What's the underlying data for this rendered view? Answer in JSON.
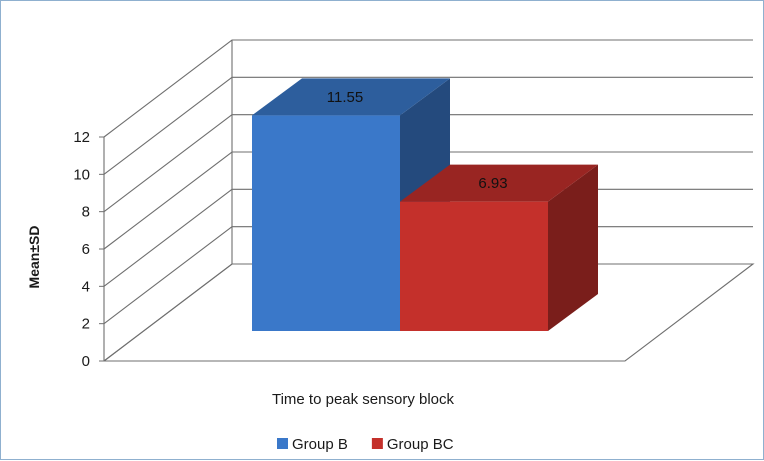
{
  "chart_data": {
    "type": "bar",
    "projection": "3d",
    "categories": [
      "Time to peak sensory block"
    ],
    "series": [
      {
        "name": "Group B",
        "values": [
          11.55
        ],
        "color": "#3a78c9"
      },
      {
        "name": "Group BC",
        "values": [
          6.93
        ],
        "color": "#c4302b"
      }
    ],
    "data_labels": [
      "11.55",
      "6.93"
    ],
    "xlabel": "Time to peak sensory block",
    "ylabel": "Mean±SD",
    "ylim": [
      0,
      12
    ],
    "yticks": [
      "0",
      "2",
      "4",
      "6",
      "8",
      "10",
      "12"
    ],
    "grid": true,
    "legend_position": "bottom"
  }
}
